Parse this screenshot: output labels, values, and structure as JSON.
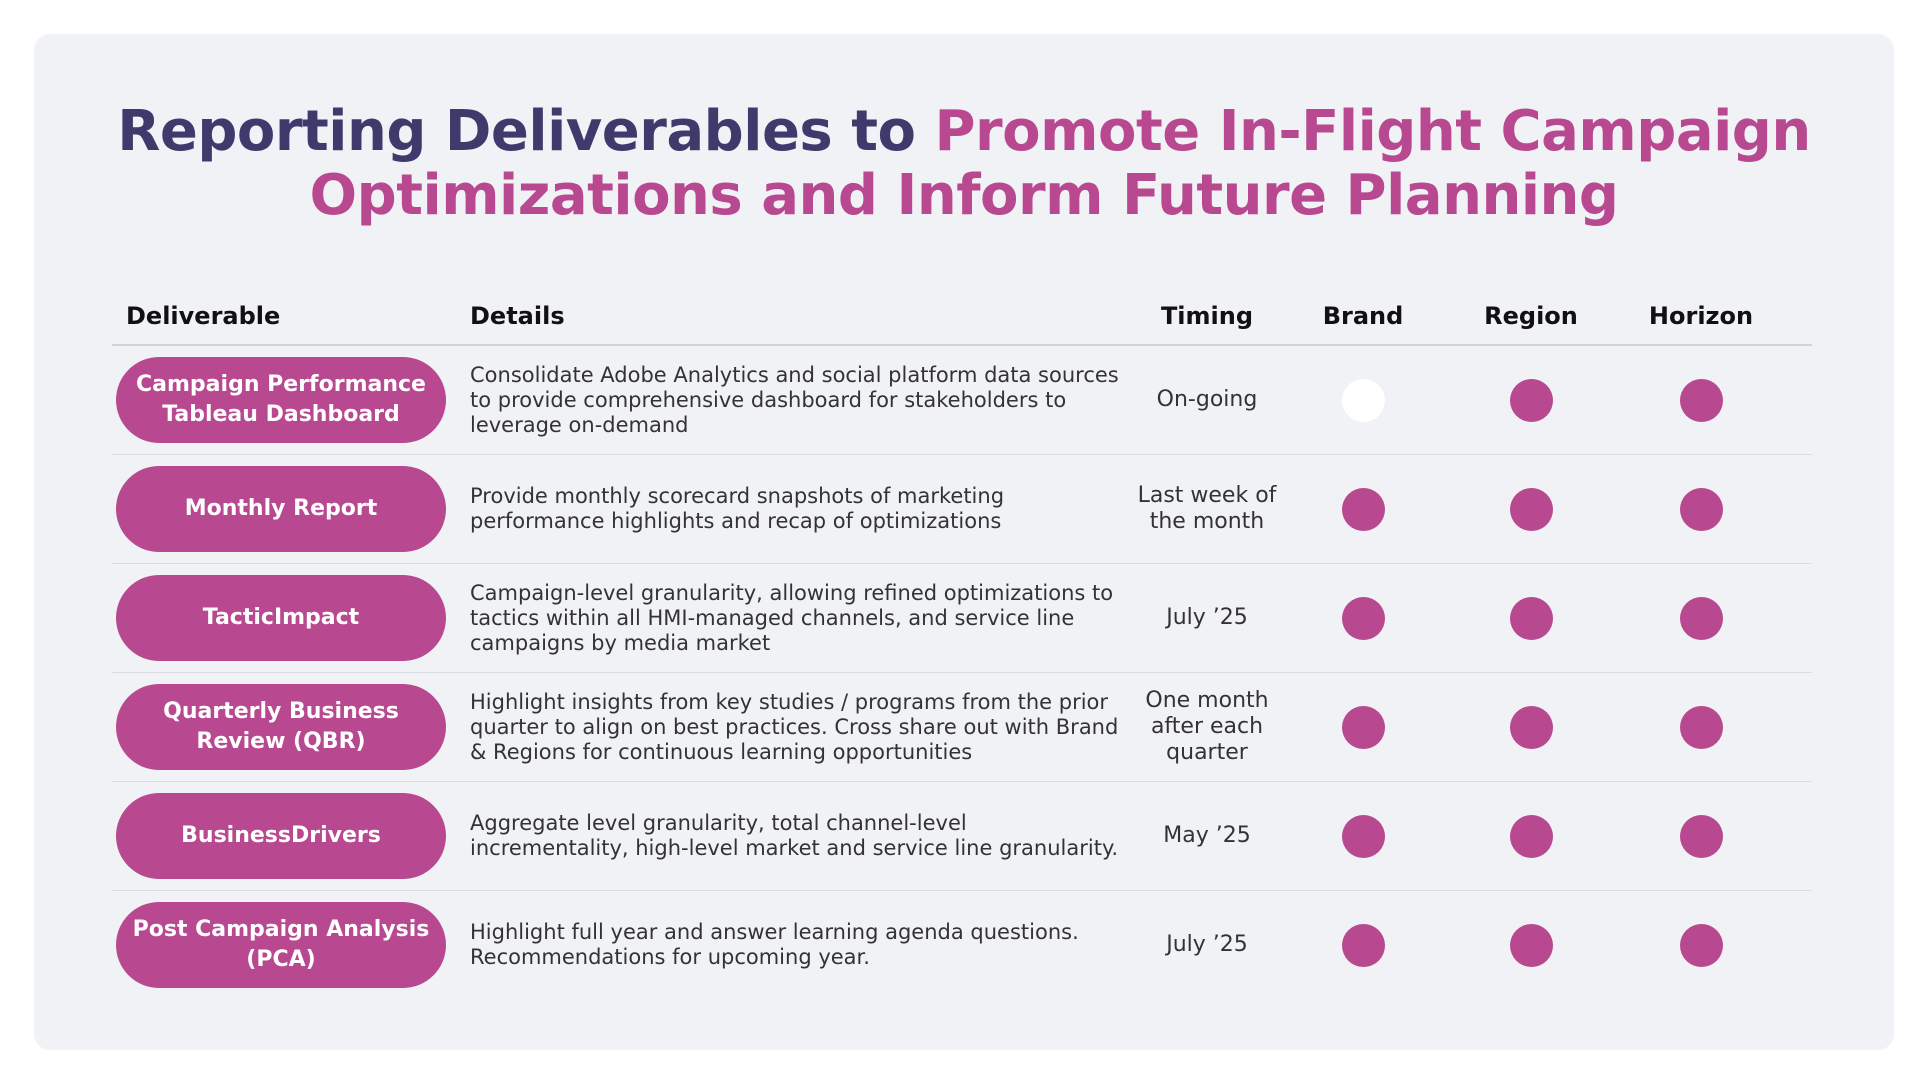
{
  "title": {
    "part1": "Reporting Deliverables to ",
    "part2": "Promote In-Flight Campaign Optimizations and Inform Future Planning"
  },
  "colors": {
    "accent": "#b8488f",
    "title_dark": "#3f3a6b",
    "card_background": "#f1f2f6"
  },
  "table": {
    "headers": {
      "deliverable": "Deliverable",
      "details": "Details",
      "timing": "Timing",
      "brand": "Brand",
      "region": "Region",
      "horizon": "Horizon"
    },
    "rows": [
      {
        "deliverable": "Campaign Performance Tableau Dashboard",
        "details": "Consolidate Adobe Analytics and social platform data sources to provide comprehensive dashboard for stakeholders to leverage on-demand",
        "timing": "On-going",
        "brand": false,
        "region": true,
        "horizon": true
      },
      {
        "deliverable": "Monthly Report",
        "details": "Provide monthly scorecard snapshots of marketing performance highlights and recap of optimizations",
        "timing": "Last week of the month",
        "brand": true,
        "region": true,
        "horizon": true
      },
      {
        "deliverable": "TacticImpact",
        "details": "Campaign-level granularity, allowing refined optimizations to tactics within all HMI-managed channels, and service line campaigns by media market",
        "timing": "July ’25",
        "brand": true,
        "region": true,
        "horizon": true
      },
      {
        "deliverable": "Quarterly Business Review (QBR)",
        "details": "Highlight insights from key studies / programs from the prior quarter to align on best practices.  Cross share out with Brand & Regions for continuous learning opportunities",
        "timing": "One month after each quarter",
        "brand": true,
        "region": true,
        "horizon": true
      },
      {
        "deliverable": "BusinessDrivers",
        "details": "Aggregate level granularity, total channel-level incrementality, high-level market and service line granularity.",
        "timing": "May ’25",
        "brand": true,
        "region": true,
        "horizon": true
      },
      {
        "deliverable": "Post Campaign Analysis (PCA)",
        "details": "Highlight full year and answer learning agenda questions. Recommendations for upcoming year.",
        "timing": "July ’25",
        "brand": true,
        "region": true,
        "horizon": true
      }
    ]
  }
}
